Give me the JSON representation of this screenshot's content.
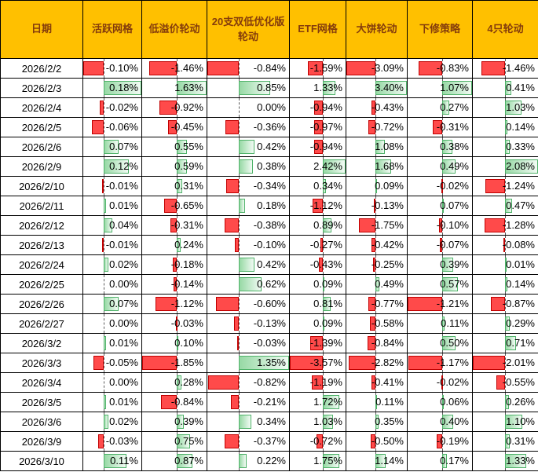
{
  "chart_data": {
    "type": "table",
    "columns": [
      "日期",
      "活跃网格",
      "低溢价轮动",
      "20支双低优化版轮动",
      "ETF网格",
      "大饼轮动",
      "下修策略",
      "4只轮动"
    ],
    "rows": [
      {
        "date": "2026/2/2",
        "values": [
          "-0.10%",
          "-1.46%",
          "-0.84%",
          "-1.59%",
          "-3.09%",
          "-0.83%",
          "-1.46%"
        ]
      },
      {
        "date": "2026/2/3",
        "values": [
          "0.18%",
          "1.63%",
          "0.85%",
          "1.33%",
          "3.40%",
          "1.07%",
          "0.41%"
        ]
      },
      {
        "date": "2026/2/4",
        "values": [
          "-0.02%",
          "-0.92%",
          "0.00%",
          "-0.94%",
          "-0.43%",
          "0.27%",
          "1.03%"
        ]
      },
      {
        "date": "2026/2/5",
        "values": [
          "-0.06%",
          "-0.45%",
          "-0.36%",
          "-0.97%",
          "-0.72%",
          "-0.31%",
          "0.14%"
        ]
      },
      {
        "date": "2026/2/6",
        "values": [
          "0.07%",
          "0.55%",
          "0.42%",
          "-0.94%",
          "1.08%",
          "0.38%",
          "0.33%"
        ]
      },
      {
        "date": "2026/2/9",
        "values": [
          "0.12%",
          "0.59%",
          "0.38%",
          "2.42%",
          "1.68%",
          "0.49%",
          "2.08%"
        ]
      },
      {
        "date": "2026/2/10",
        "values": [
          "-0.01%",
          "0.31%",
          "-0.34%",
          "0.34%",
          "0.09%",
          "-0.02%",
          "-1.24%"
        ]
      },
      {
        "date": "2026/2/11",
        "values": [
          "0.01%",
          "-0.65%",
          "0.18%",
          "-1.12%",
          "-0.13%",
          "0.07%",
          "0.47%"
        ]
      },
      {
        "date": "2026/2/12",
        "values": [
          "0.04%",
          "-0.31%",
          "-0.38%",
          "0.89%",
          "-1.75%",
          "-0.10%",
          "-1.28%"
        ]
      },
      {
        "date": "2026/2/13",
        "values": [
          "-0.01%",
          "0.24%",
          "-0.10%",
          "-0.27%",
          "-0.42%",
          "-0.07%",
          "-0.08%"
        ]
      },
      {
        "date": "2026/2/24",
        "values": [
          "0.02%",
          "-0.18%",
          "0.42%",
          "-0.43%",
          "-0.25%",
          "0.39%",
          "0.01%"
        ]
      },
      {
        "date": "2026/2/25",
        "values": [
          "0.00%",
          "-0.14%",
          "0.62%",
          "0.09%",
          "0.49%",
          "0.57%",
          "0.14%"
        ]
      },
      {
        "date": "2026/2/26",
        "values": [
          "0.07%",
          "-1.12%",
          "-0.60%",
          "0.81%",
          "-0.77%",
          "-1.21%",
          "-0.87%"
        ]
      },
      {
        "date": "2026/2/27",
        "values": [
          "0.00%",
          "-0.03%",
          "-0.13%",
          "0.09%",
          "-0.58%",
          "0.11%",
          "0.29%"
        ]
      },
      {
        "date": "2026/3/2",
        "values": [
          "0.01%",
          "0.10%",
          "-0.03%",
          "-1.39%",
          "-0.84%",
          "0.50%",
          "0.71%"
        ]
      },
      {
        "date": "2026/3/3",
        "values": [
          "-0.05%",
          "-1.85%",
          "1.35%",
          "-3.57%",
          "-2.82%",
          "-1.17%",
          "-2.01%"
        ]
      },
      {
        "date": "2026/3/4",
        "values": [
          "0.00%",
          "0.28%",
          "-0.82%",
          "-1.19%",
          "-0.41%",
          "-0.02%",
          "-0.55%"
        ]
      },
      {
        "date": "2026/3/5",
        "values": [
          "0.01%",
          "-0.84%",
          "-0.21%",
          "1.72%",
          "0.11%",
          "0.06%",
          "0.26%"
        ]
      },
      {
        "date": "2026/3/6",
        "values": [
          "0.02%",
          "0.39%",
          "0.34%",
          "1.03%",
          "0.35%",
          "0.40%",
          "1.10%"
        ]
      },
      {
        "date": "2026/3/9",
        "values": [
          "-0.03%",
          "0.75%",
          "-0.37%",
          "-0.72%",
          "-0.50%",
          "-0.19%",
          "0.31%"
        ]
      },
      {
        "date": "2026/3/10",
        "values": [
          "0.11%",
          "0.87%",
          "0.22%",
          "1.75%",
          "1.14%",
          "0.17%",
          "1.33%"
        ]
      }
    ],
    "data_bars": "negative values: solid red bar left of dashed column axis; positive values: green gradient bar right of axis; bar length scaled to each column min/max"
  },
  "colors": {
    "header_bg": "#FFC000",
    "header_text": "#843C0C",
    "negative_bar_fill": "#FF4A4A",
    "negative_bar_border": "#C00000",
    "positive_bar_fill": "#97D9A5",
    "positive_bar_fade": "#F2FBF4",
    "positive_bar_border": "#4FB269",
    "axis_line": "#595959",
    "gridline": "#000000"
  }
}
